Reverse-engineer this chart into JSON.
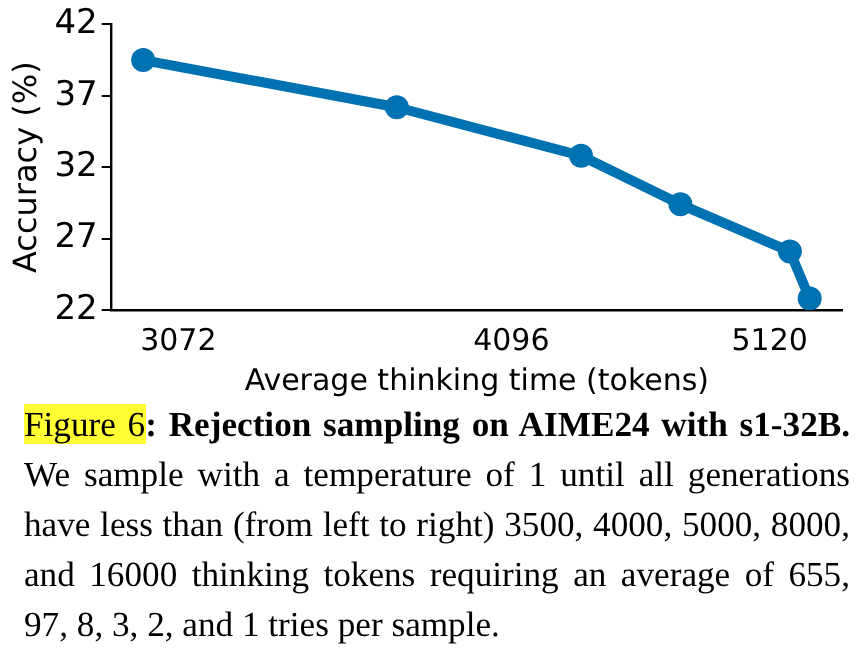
{
  "chart_data": {
    "type": "line",
    "xlabel": "Average thinking time (tokens)",
    "ylabel": "Accuracy (%)",
    "x": [
      2980,
      3710,
      4350,
      4740,
      5210,
      5300
    ],
    "series": [
      {
        "color": "#0072b2",
        "values": [
          39.5,
          36.2,
          32.8,
          29.4,
          26.1,
          22.8
        ]
      }
    ],
    "log": "x",
    "xlim": [
      2900,
      5450
    ],
    "xticks": [
      3072,
      4096,
      5120
    ],
    "ylim": [
      22,
      42
    ],
    "yticks": [
      22,
      27,
      32,
      37,
      42
    ],
    "grid": false,
    "legend": false,
    "marker": "circle",
    "line_style": "solid",
    "annotations": [
      "Figure 6",
      ": Rejection sampling on AIME24 with s1-32B.",
      " We sample with a temperature of 1 until all generations have less than (from left to right) 3500, 4000, 5000, 8000, and 16000 thinking tokens requiring an average of 655, 97, 8, 3, 2, and 1 tries per sample."
    ]
  }
}
